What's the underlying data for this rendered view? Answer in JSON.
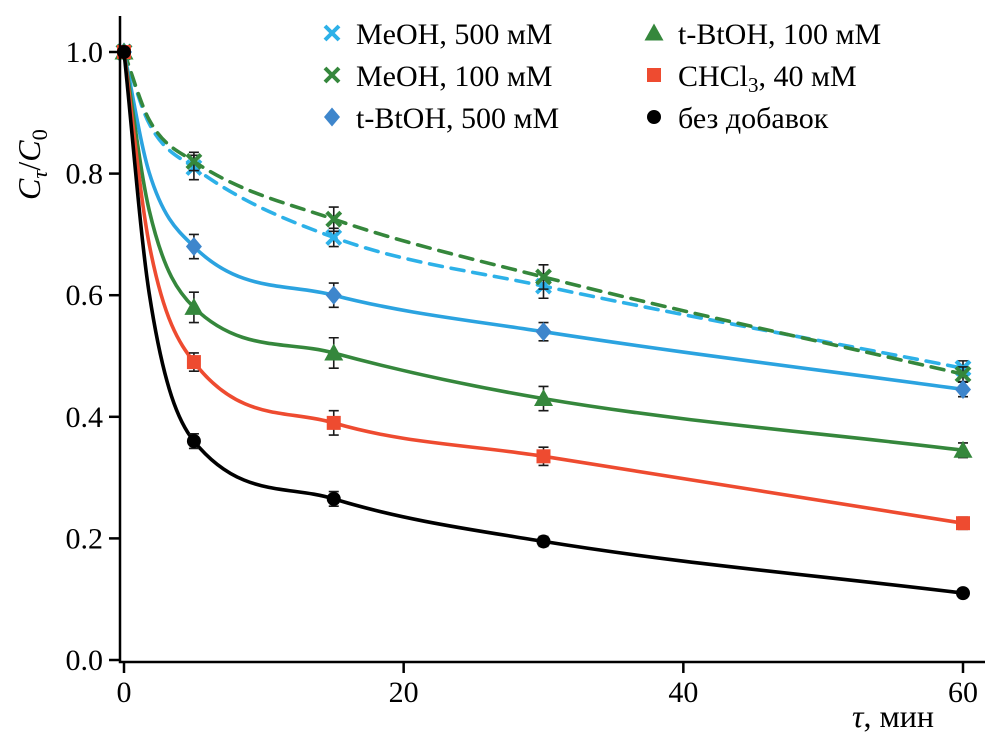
{
  "chart_data": {
    "type": "line",
    "title": "",
    "xlabel": "τ, мин",
    "xlabel_parts": [
      {
        "text": "τ",
        "italic": true
      },
      {
        "text": ", мин",
        "italic": false
      }
    ],
    "ylabel": "Cτ/C0",
    "ylabel_parts": [
      {
        "text": "C",
        "italic": true
      },
      {
        "text": "τ",
        "sub": true,
        "italic": true
      },
      {
        "text": "/",
        "italic": false
      },
      {
        "text": "C",
        "italic": true
      },
      {
        "text": "0",
        "sub": true,
        "italic": false
      }
    ],
    "xlim": [
      0,
      60
    ],
    "ylim": [
      0,
      1.0
    ],
    "xticks": [
      0,
      20,
      40,
      60
    ],
    "xtick_labels": [
      "0",
      "20",
      "40",
      "60"
    ],
    "yticks": [
      0,
      0.2,
      0.4,
      0.6,
      0.8,
      1.0
    ],
    "ytick_labels": [
      "0.0",
      "0.2",
      "0.4",
      "0.6",
      "0.8",
      "1.0"
    ],
    "grid": false,
    "legend_position": "top",
    "x": [
      0,
      5,
      15,
      30,
      60
    ],
    "series": [
      {
        "id": "meoh-500",
        "name": "MeOH, 500 мМ",
        "marker": "x",
        "line": "dashed",
        "color": "#2db1e8",
        "values": [
          1.0,
          0.81,
          0.695,
          0.615,
          0.48
        ],
        "errors": [
          0.008,
          0.02,
          0.015,
          0.02,
          0.012
        ]
      },
      {
        "id": "meoh-100",
        "name": "MeOH, 100 мМ",
        "marker": "x",
        "line": "dashed",
        "color": "#35873c",
        "values": [
          1.0,
          0.82,
          0.725,
          0.63,
          0.47
        ],
        "errors": [
          0.008,
          0.015,
          0.02,
          0.02,
          0.012
        ]
      },
      {
        "id": "t-btoh-500",
        "name": "t-BtOH, 500 мМ",
        "marker": "diamond",
        "line": "solid",
        "color": "#2ba3e0",
        "marker_color": "#3e86cc",
        "values": [
          1.0,
          0.68,
          0.6,
          0.54,
          0.445
        ],
        "errors": [
          0.008,
          0.02,
          0.02,
          0.015,
          0.012
        ]
      },
      {
        "id": "t-btoh-100",
        "name": "t-BtOH, 100 мМ",
        "marker": "triangle",
        "line": "solid",
        "color": "#35873c",
        "values": [
          1.0,
          0.58,
          0.505,
          0.43,
          0.345
        ],
        "errors": [
          0.008,
          0.025,
          0.025,
          0.02,
          0.012
        ]
      },
      {
        "id": "chcl3-40",
        "name": "CHCl₃, 40 мМ",
        "marker": "square",
        "line": "solid",
        "color": "#ee4b30",
        "values": [
          1.0,
          0.49,
          0.39,
          0.335,
          0.225
        ],
        "errors": [
          0.008,
          0.015,
          0.02,
          0.015,
          0.01
        ]
      },
      {
        "id": "no-additives",
        "name": "без добавок",
        "marker": "circle",
        "line": "solid",
        "color": "#000000",
        "values": [
          1.0,
          0.36,
          0.265,
          0.195,
          0.11
        ],
        "errors": [
          0.005,
          0.012,
          0.012,
          0.008,
          0.006
        ]
      }
    ]
  }
}
